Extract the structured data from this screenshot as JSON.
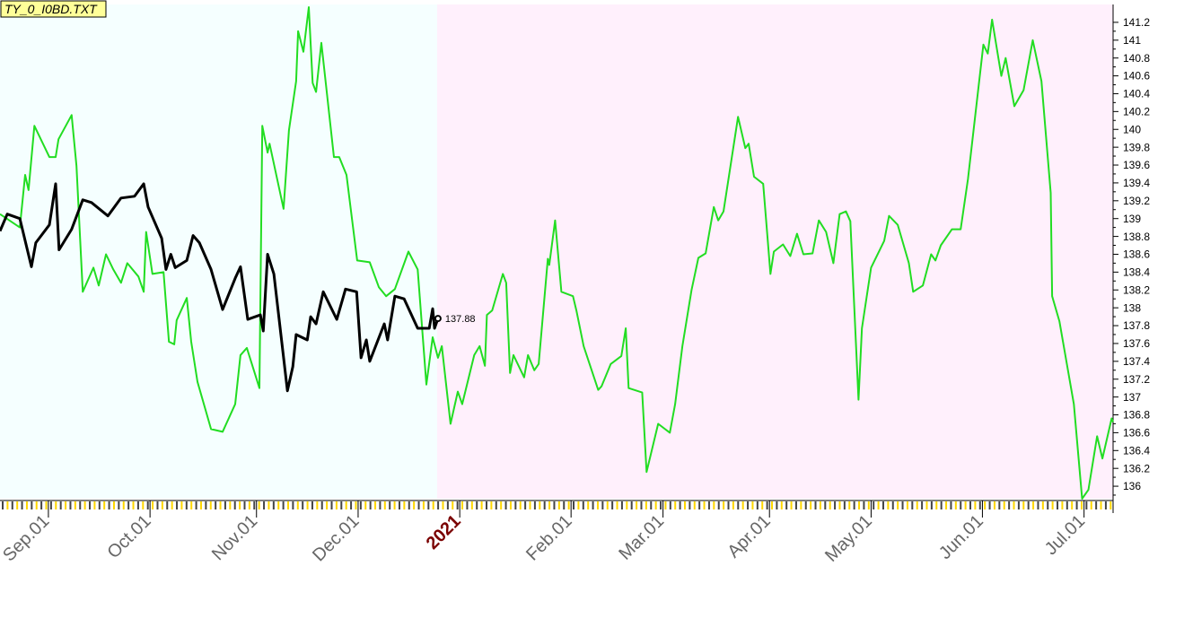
{
  "chart_data": {
    "type": "line",
    "title": "TY_0_I0BD.TXT",
    "xlim": [
      0,
      230
    ],
    "ylim": [
      135.86,
      141.4
    ],
    "xticks": [
      {
        "value": 10,
        "label": "Sep.01"
      },
      {
        "value": 31,
        "label": "Oct.01"
      },
      {
        "value": 53,
        "label": "Nov.01"
      },
      {
        "value": 74,
        "label": "Dec.01"
      },
      {
        "value": 95,
        "label": "2021"
      },
      {
        "value": 118,
        "label": "Feb.01"
      },
      {
        "value": 137,
        "label": "Mar.01"
      },
      {
        "value": 159,
        "label": "Apr.01"
      },
      {
        "value": 180,
        "label": "May.01"
      },
      {
        "value": 203,
        "label": "Jun.01"
      },
      {
        "value": 224,
        "label": "Jul.01"
      }
    ],
    "yticks": [
      136,
      136.2,
      136.4,
      136.6,
      136.8,
      137,
      137.2,
      137.4,
      137.6,
      137.8,
      138,
      138.2,
      138.4,
      138.6,
      138.8,
      139,
      139.2,
      139.4,
      139.6,
      139.8,
      140,
      140.2,
      140.4,
      140.6,
      140.8,
      141,
      141.2
    ],
    "series": [
      {
        "color": "#22dd22",
        "x": [
          0,
          4.1,
          5.2,
          5.9,
          7.1,
          10.2,
          11.5,
          12.1,
          14.8,
          15.8,
          17.1,
          19.3,
          20.4,
          21.9,
          23.4,
          25.0,
          26.3,
          28.6,
          29.7,
          30.2,
          31.5,
          33.8,
          34.9,
          36.0,
          36.5,
          38.6,
          39.5,
          40.8,
          43.6,
          46.0,
          48.6,
          49.7,
          51.0,
          53.6,
          54.2,
          55.3,
          55.7,
          58.6,
          59.7,
          61.2,
          61.6,
          62.7,
          63.8,
          64.6,
          65.3,
          66.4,
          69.0,
          70.1,
          71.6,
          73.8,
          76.4,
          78.3,
          79.8,
          81.6,
          84.4,
          86.3,
          88.1,
          89.4,
          90.5,
          91.3,
          93.1,
          94.6,
          95.5,
          98.0,
          99.1,
          100.2,
          100.6,
          101.7,
          103.9,
          104.6,
          105.4,
          106.1,
          108.3,
          109.1,
          110.4,
          111.3,
          113.2,
          113.5,
          114.7,
          116.0,
          118.4,
          119.1,
          120.6,
          123.6,
          124.3,
          126.2,
          128.4,
          129.3,
          129.9,
          132.7,
          133.6,
          136.0,
          138.4,
          139.5,
          141.0,
          142.9,
          144.3,
          145.8,
          147.5,
          148.4,
          149.5,
          152.5,
          154.0,
          154.7,
          155.8,
          157.7,
          159.2,
          159.9,
          161.8,
          163.3,
          164.7,
          166.0,
          167.9,
          169.2,
          170.7,
          172.2,
          173.5,
          174.8,
          175.7,
          177.4,
          178.1,
          180.0,
          182.7,
          183.7,
          185.5,
          187.8,
          188.7,
          190.7,
          192.4,
          193.3,
          194.4,
          196.7,
          198.5,
          200.0,
          203.2,
          204.1,
          205.0,
          206.9,
          207.8,
          209.6,
          211.5,
          213.4,
          215.2,
          217.1,
          217.4,
          218.9,
          221.9,
          223.6,
          224.9,
          226.7,
          227.8,
          229.7,
          230
        ],
        "values": [
          139.05,
          138.9,
          139.49,
          139.32,
          140.04,
          139.69,
          139.69,
          139.89,
          140.16,
          139.59,
          138.18,
          138.45,
          138.25,
          138.6,
          138.43,
          138.28,
          138.5,
          138.35,
          138.18,
          138.85,
          138.38,
          138.4,
          137.62,
          137.59,
          137.86,
          138.11,
          137.62,
          137.17,
          136.64,
          136.61,
          136.92,
          137.47,
          137.55,
          137.1,
          140.04,
          139.74,
          139.84,
          139.11,
          139.99,
          140.54,
          141.1,
          140.87,
          141.37,
          140.52,
          140.42,
          140.97,
          139.69,
          139.69,
          139.49,
          138.53,
          138.51,
          138.23,
          138.13,
          138.21,
          138.63,
          138.43,
          137.14,
          137.67,
          137.44,
          137.57,
          136.7,
          137.06,
          136.92,
          137.47,
          137.57,
          137.35,
          137.92,
          137.97,
          138.38,
          138.28,
          137.27,
          137.47,
          137.22,
          137.47,
          137.3,
          137.37,
          138.55,
          138.48,
          138.98,
          138.18,
          138.13,
          137.97,
          137.57,
          137.08,
          137.12,
          137.37,
          137.46,
          137.77,
          137.1,
          137.05,
          136.16,
          136.7,
          136.6,
          136.92,
          137.57,
          138.2,
          138.56,
          138.61,
          139.13,
          138.98,
          139.08,
          140.14,
          139.79,
          139.84,
          139.47,
          139.39,
          138.38,
          138.63,
          138.71,
          138.58,
          138.83,
          138.6,
          138.61,
          138.98,
          138.85,
          138.5,
          139.05,
          139.08,
          138.97,
          136.97,
          137.77,
          138.45,
          138.75,
          139.03,
          138.93,
          138.5,
          138.18,
          138.25,
          138.6,
          138.53,
          138.7,
          138.88,
          138.88,
          139.44,
          140.95,
          140.85,
          141.23,
          140.6,
          140.8,
          140.26,
          140.44,
          141.0,
          140.54,
          139.29,
          138.13,
          137.85,
          136.92,
          135.86,
          135.96,
          136.56,
          136.31,
          136.76,
          136.72
        ]
      },
      {
        "color": "#000000",
        "x": [
          0,
          1.5,
          4.1,
          6.5,
          7.4,
          10.2,
          11.5,
          12.2,
          14.8,
          17.1,
          18.9,
          22.3,
          25.0,
          27.8,
          29.7,
          30.6,
          33.4,
          34.3,
          35.3,
          36.2,
          38.6,
          39.9,
          41.2,
          43.6,
          46.0,
          48.6,
          49.7,
          51.2,
          53.8,
          54.4,
          55.3,
          56.6,
          59.4,
          60.5,
          61.2,
          63.5,
          64.2,
          65.3,
          66.8,
          69.6,
          71.4,
          73.7,
          74.6,
          75.7,
          76.4,
          79.4,
          80.1,
          81.6,
          83.5,
          86.3,
          88.7,
          89.4,
          89.8,
          90.5
        ],
        "values": [
          138.86,
          139.05,
          139.0,
          138.46,
          138.73,
          138.93,
          139.39,
          138.65,
          138.88,
          139.21,
          139.18,
          139.03,
          139.23,
          139.25,
          139.39,
          139.13,
          138.78,
          138.43,
          138.6,
          138.45,
          138.53,
          138.81,
          138.73,
          138.43,
          137.98,
          138.33,
          138.46,
          137.87,
          137.92,
          137.74,
          138.6,
          138.38,
          137.07,
          137.34,
          137.7,
          137.64,
          137.9,
          137.82,
          138.18,
          137.87,
          138.21,
          138.18,
          137.44,
          137.64,
          137.4,
          137.82,
          137.64,
          138.13,
          138.1,
          137.77,
          137.77,
          137.99,
          137.77,
          137.88
        ],
        "last_label": "137.88"
      }
    ]
  }
}
